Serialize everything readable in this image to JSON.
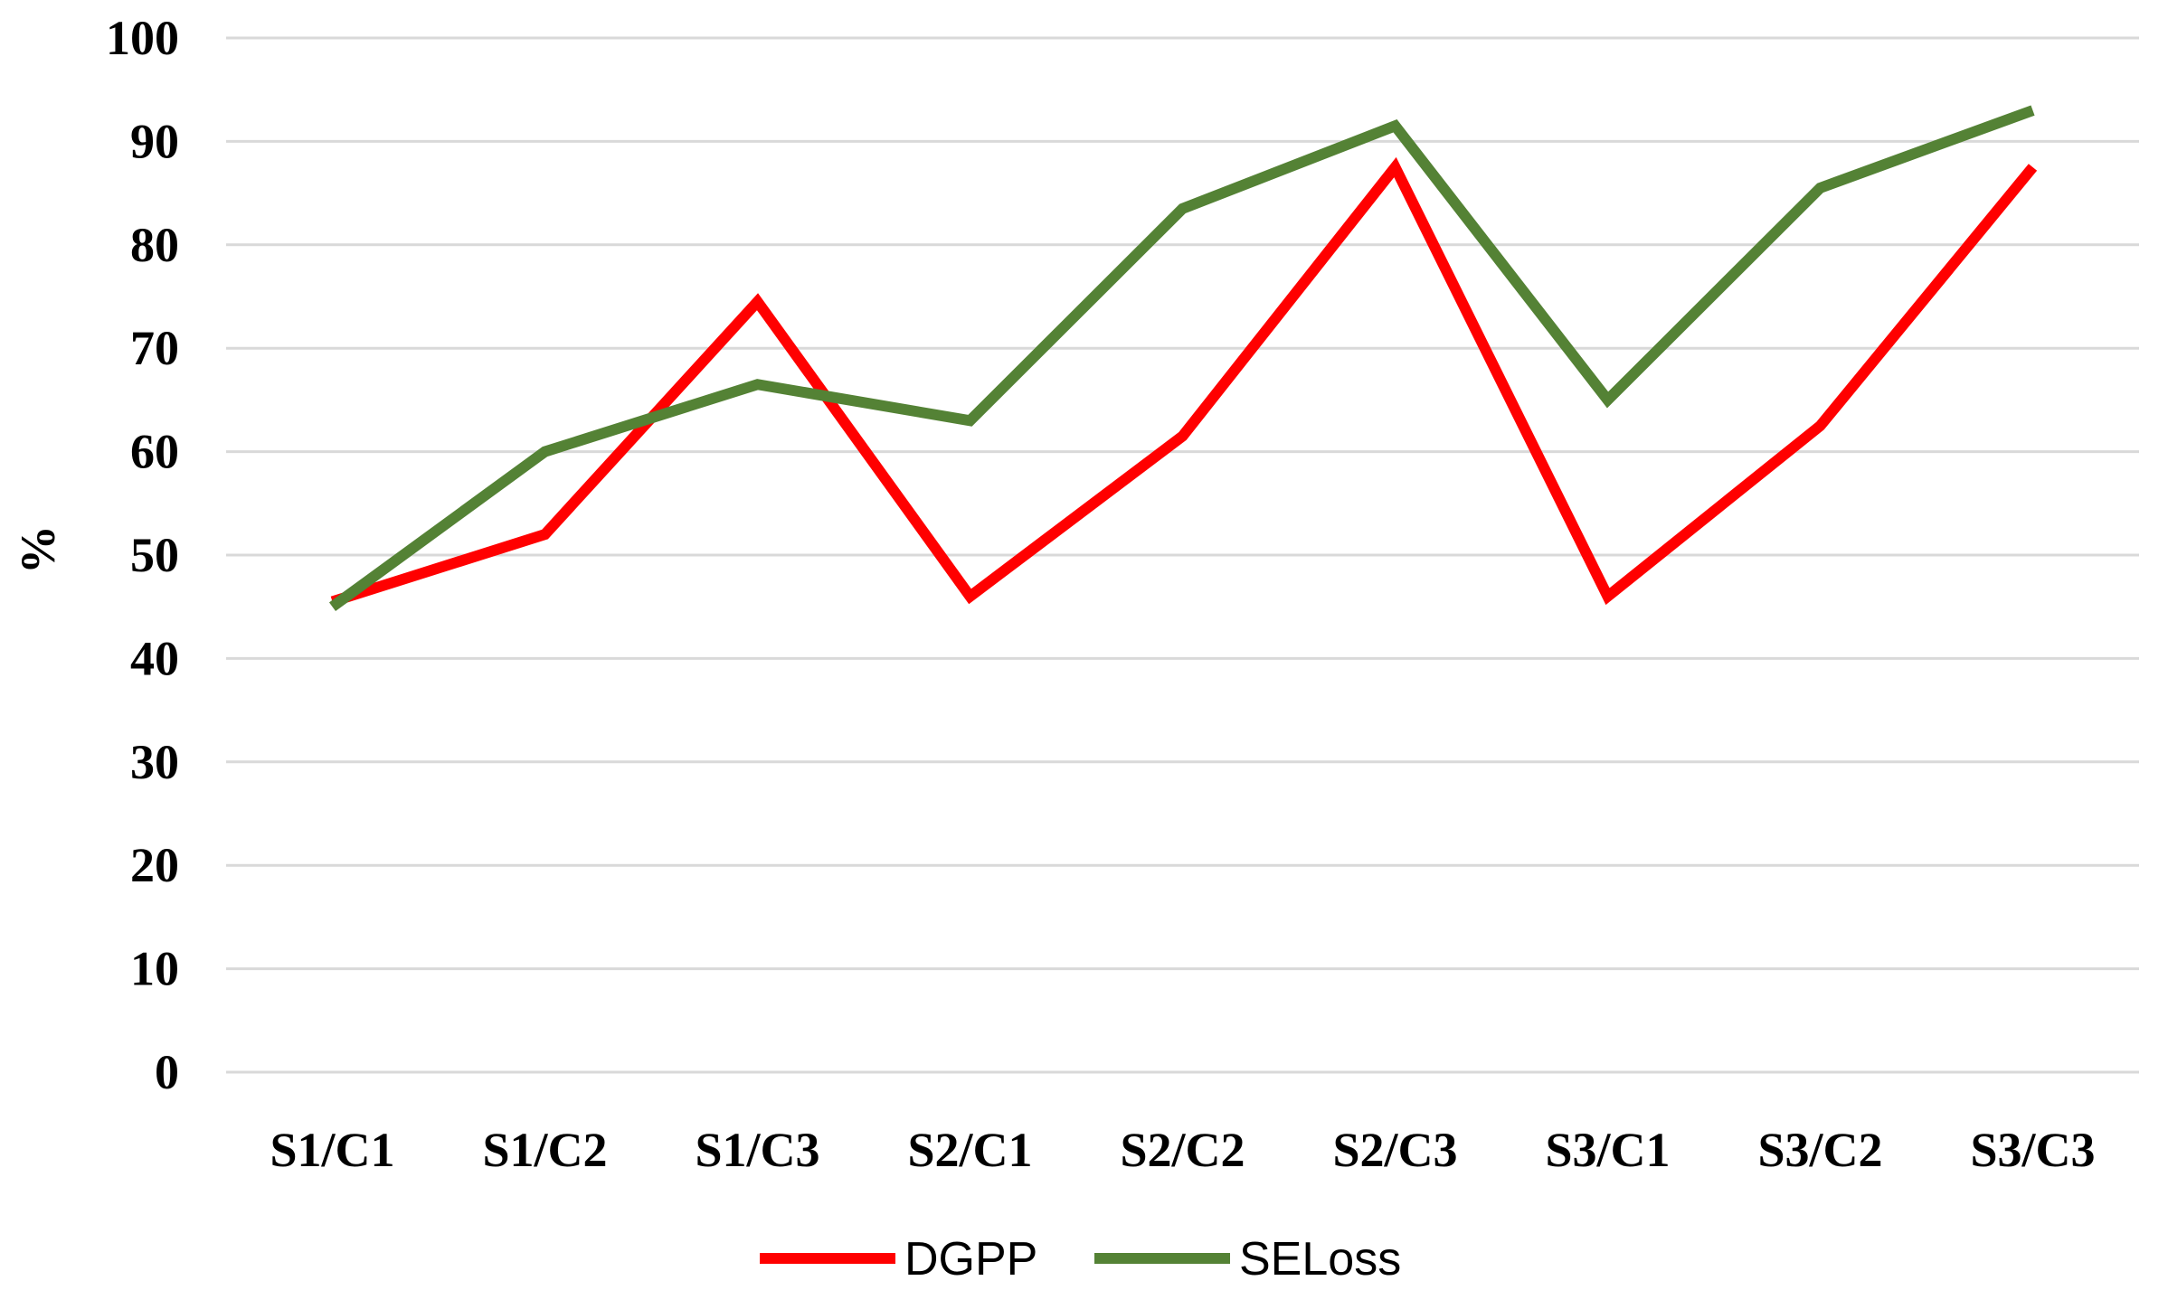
{
  "chart_data": {
    "type": "line",
    "title": "",
    "xlabel": "",
    "ylabel": "%",
    "ylim": [
      0,
      100
    ],
    "yticks": [
      "0",
      "10",
      "20",
      "30",
      "40",
      "50",
      "60",
      "70",
      "80",
      "90",
      "100"
    ],
    "categories": [
      "S1/C1",
      "S1/C2",
      "S1/C3",
      "S2/C1",
      "S2/C2",
      "S2/C3",
      "S3/C1",
      "S3/C2",
      "S3/C3"
    ],
    "series": [
      {
        "name": "DGPP",
        "color": "#ff0000",
        "values": [
          45.5,
          52,
          74.5,
          46,
          61.5,
          87.5,
          46,
          62.5,
          87.5
        ]
      },
      {
        "name": "SELoss",
        "color": "#548235",
        "values": [
          45,
          60,
          66.5,
          63,
          83.5,
          91.5,
          65,
          85.5,
          93
        ]
      }
    ],
    "grid": true,
    "legend_position": "bottom"
  }
}
